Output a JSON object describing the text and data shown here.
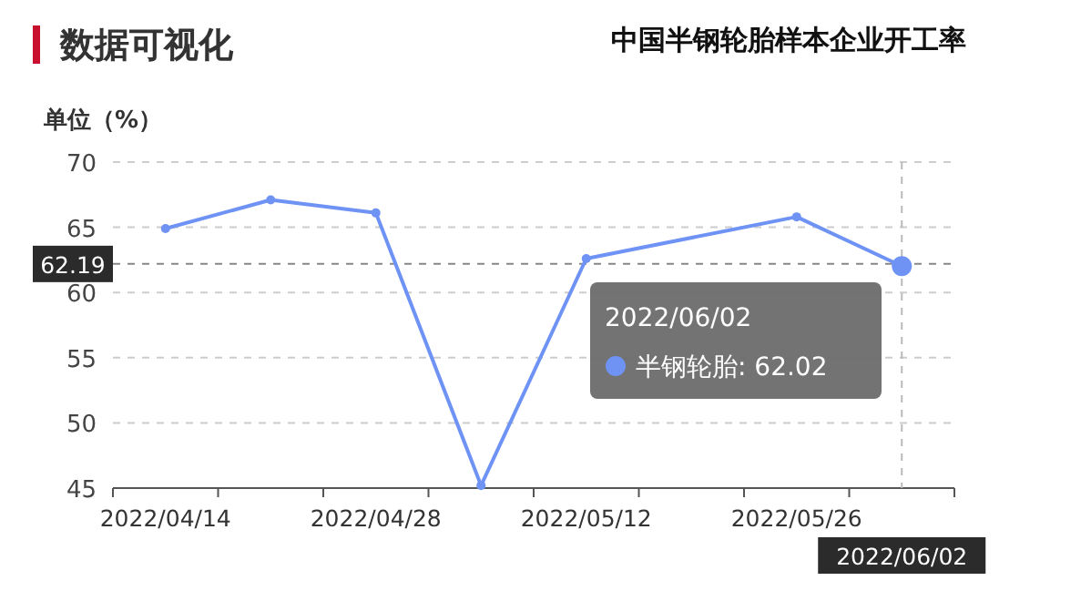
{
  "chart_data": {
    "type": "line",
    "title": "中国半钢轮胎样本企业开工率",
    "ylabel": "单位（%）",
    "annotations": [
      "数据可视化",
      ": 62.02"
    ],
    "categories": [
      "2022/04/14",
      null,
      "2022/04/28",
      null,
      "2022/05/12",
      null,
      "2022/05/26",
      "2022/06/02"
    ],
    "series": [
      {
        "name": "半钢轮胎",
        "color": "#6e93f5",
        "values": [
          64.9,
          67.1,
          66.1,
          45.2,
          62.6,
          null,
          65.8,
          62.02
        ]
      }
    ],
    "legend": "right",
    "ylim": [
      45,
      70
    ],
    "yticks": [
      45,
      50,
      55,
      60,
      65,
      70
    ],
    "grid": "y",
    "marker": "circle",
    "line_style": "solid",
    "ref_lines": [
      {
        "axis": "y",
        "value": 62.19,
        "label": "62.19",
        "line_style": "dashed"
      },
      {
        "axis": "x",
        "value": "2022/06/02",
        "line_style": "dashed"
      }
    ]
  }
}
